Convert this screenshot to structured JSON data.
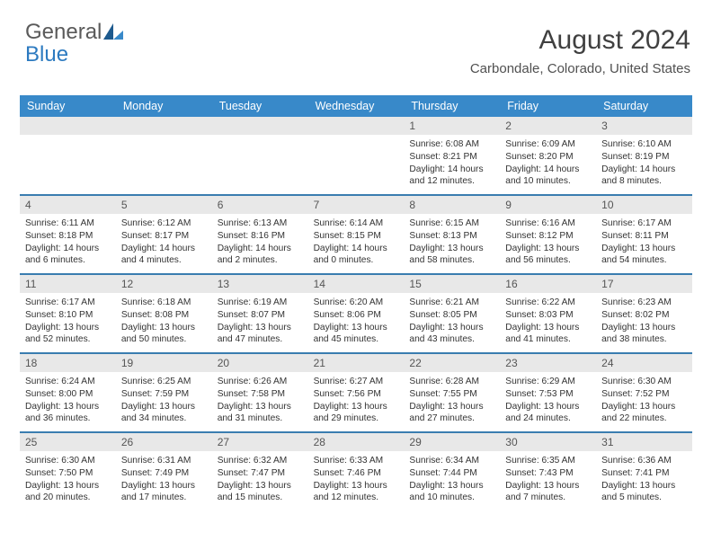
{
  "logo": {
    "text1": "General",
    "text2": "Blue"
  },
  "header": {
    "month_title": "August 2024",
    "location": "Carbondale, Colorado, United States"
  },
  "styling": {
    "header_bg": "#3889c9",
    "header_text": "#ffffff",
    "row_border": "#3a7db0",
    "daynum_bg": "#e8e8e8",
    "body_font_size": 10.2
  },
  "calendar": {
    "type": "table",
    "day_names": [
      "Sunday",
      "Monday",
      "Tuesday",
      "Wednesday",
      "Thursday",
      "Friday",
      "Saturday"
    ],
    "weeks": [
      [
        null,
        null,
        null,
        null,
        {
          "n": "1",
          "sr": "6:08 AM",
          "ss": "8:21 PM",
          "dl": "14 hours and 12 minutes."
        },
        {
          "n": "2",
          "sr": "6:09 AM",
          "ss": "8:20 PM",
          "dl": "14 hours and 10 minutes."
        },
        {
          "n": "3",
          "sr": "6:10 AM",
          "ss": "8:19 PM",
          "dl": "14 hours and 8 minutes."
        }
      ],
      [
        {
          "n": "4",
          "sr": "6:11 AM",
          "ss": "8:18 PM",
          "dl": "14 hours and 6 minutes."
        },
        {
          "n": "5",
          "sr": "6:12 AM",
          "ss": "8:17 PM",
          "dl": "14 hours and 4 minutes."
        },
        {
          "n": "6",
          "sr": "6:13 AM",
          "ss": "8:16 PM",
          "dl": "14 hours and 2 minutes."
        },
        {
          "n": "7",
          "sr": "6:14 AM",
          "ss": "8:15 PM",
          "dl": "14 hours and 0 minutes."
        },
        {
          "n": "8",
          "sr": "6:15 AM",
          "ss": "8:13 PM",
          "dl": "13 hours and 58 minutes."
        },
        {
          "n": "9",
          "sr": "6:16 AM",
          "ss": "8:12 PM",
          "dl": "13 hours and 56 minutes."
        },
        {
          "n": "10",
          "sr": "6:17 AM",
          "ss": "8:11 PM",
          "dl": "13 hours and 54 minutes."
        }
      ],
      [
        {
          "n": "11",
          "sr": "6:17 AM",
          "ss": "8:10 PM",
          "dl": "13 hours and 52 minutes."
        },
        {
          "n": "12",
          "sr": "6:18 AM",
          "ss": "8:08 PM",
          "dl": "13 hours and 50 minutes."
        },
        {
          "n": "13",
          "sr": "6:19 AM",
          "ss": "8:07 PM",
          "dl": "13 hours and 47 minutes."
        },
        {
          "n": "14",
          "sr": "6:20 AM",
          "ss": "8:06 PM",
          "dl": "13 hours and 45 minutes."
        },
        {
          "n": "15",
          "sr": "6:21 AM",
          "ss": "8:05 PM",
          "dl": "13 hours and 43 minutes."
        },
        {
          "n": "16",
          "sr": "6:22 AM",
          "ss": "8:03 PM",
          "dl": "13 hours and 41 minutes."
        },
        {
          "n": "17",
          "sr": "6:23 AM",
          "ss": "8:02 PM",
          "dl": "13 hours and 38 minutes."
        }
      ],
      [
        {
          "n": "18",
          "sr": "6:24 AM",
          "ss": "8:00 PM",
          "dl": "13 hours and 36 minutes."
        },
        {
          "n": "19",
          "sr": "6:25 AM",
          "ss": "7:59 PM",
          "dl": "13 hours and 34 minutes."
        },
        {
          "n": "20",
          "sr": "6:26 AM",
          "ss": "7:58 PM",
          "dl": "13 hours and 31 minutes."
        },
        {
          "n": "21",
          "sr": "6:27 AM",
          "ss": "7:56 PM",
          "dl": "13 hours and 29 minutes."
        },
        {
          "n": "22",
          "sr": "6:28 AM",
          "ss": "7:55 PM",
          "dl": "13 hours and 27 minutes."
        },
        {
          "n": "23",
          "sr": "6:29 AM",
          "ss": "7:53 PM",
          "dl": "13 hours and 24 minutes."
        },
        {
          "n": "24",
          "sr": "6:30 AM",
          "ss": "7:52 PM",
          "dl": "13 hours and 22 minutes."
        }
      ],
      [
        {
          "n": "25",
          "sr": "6:30 AM",
          "ss": "7:50 PM",
          "dl": "13 hours and 20 minutes."
        },
        {
          "n": "26",
          "sr": "6:31 AM",
          "ss": "7:49 PM",
          "dl": "13 hours and 17 minutes."
        },
        {
          "n": "27",
          "sr": "6:32 AM",
          "ss": "7:47 PM",
          "dl": "13 hours and 15 minutes."
        },
        {
          "n": "28",
          "sr": "6:33 AM",
          "ss": "7:46 PM",
          "dl": "13 hours and 12 minutes."
        },
        {
          "n": "29",
          "sr": "6:34 AM",
          "ss": "7:44 PM",
          "dl": "13 hours and 10 minutes."
        },
        {
          "n": "30",
          "sr": "6:35 AM",
          "ss": "7:43 PM",
          "dl": "13 hours and 7 minutes."
        },
        {
          "n": "31",
          "sr": "6:36 AM",
          "ss": "7:41 PM",
          "dl": "13 hours and 5 minutes."
        }
      ]
    ]
  },
  "labels": {
    "sunrise": "Sunrise:",
    "sunset": "Sunset:",
    "daylight": "Daylight:"
  }
}
